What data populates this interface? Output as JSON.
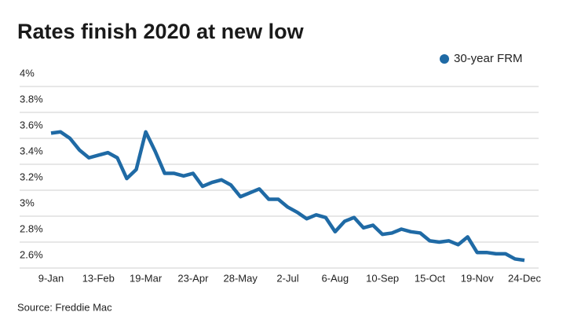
{
  "chart_data": {
    "type": "line",
    "title": "Rates finish 2020 at new low",
    "source": "Source: Freddie Mac",
    "categories": [
      "9-Jan",
      null,
      null,
      null,
      null,
      "13-Feb",
      null,
      null,
      null,
      null,
      "19-Mar",
      null,
      null,
      null,
      null,
      "23-Apr",
      null,
      null,
      null,
      null,
      "28-May",
      null,
      null,
      null,
      null,
      "2-Jul",
      null,
      null,
      null,
      null,
      "6-Aug",
      null,
      null,
      null,
      null,
      "10-Sep",
      null,
      null,
      null,
      null,
      "15-Oct",
      null,
      null,
      null,
      null,
      "19-Nov",
      null,
      null,
      null,
      null,
      "24-Dec"
    ],
    "series": [
      {
        "name": "30-year FRM",
        "color": "#1f6aa5",
        "values": [
          3.64,
          3.65,
          3.6,
          3.51,
          3.45,
          3.47,
          3.49,
          3.45,
          3.29,
          3.36,
          3.65,
          3.5,
          3.33,
          3.33,
          3.31,
          3.33,
          3.23,
          3.26,
          3.28,
          3.24,
          3.15,
          3.18,
          3.21,
          3.13,
          3.13,
          3.07,
          3.03,
          2.98,
          3.01,
          2.99,
          2.88,
          2.96,
          2.99,
          2.91,
          2.93,
          2.86,
          2.87,
          2.9,
          2.88,
          2.87,
          2.81,
          2.8,
          2.81,
          2.78,
          2.84,
          2.72,
          2.72,
          2.71,
          2.71,
          2.67,
          2.66
        ]
      }
    ],
    "ylim": [
      2.6,
      4.0
    ],
    "yticks": [
      {
        "value": 2.6,
        "label": "2.6%"
      },
      {
        "value": 2.8,
        "label": "2.8%"
      },
      {
        "value": 3,
        "label": "3%"
      },
      {
        "value": 3.2,
        "label": "3.2%"
      },
      {
        "value": 3.4,
        "label": "3.4%"
      },
      {
        "value": 3.6,
        "label": "3.6%"
      },
      {
        "value": 3.8,
        "label": "3.8%"
      },
      {
        "value": 4,
        "label": "4%"
      }
    ],
    "grid": true,
    "legend": "top-right"
  }
}
